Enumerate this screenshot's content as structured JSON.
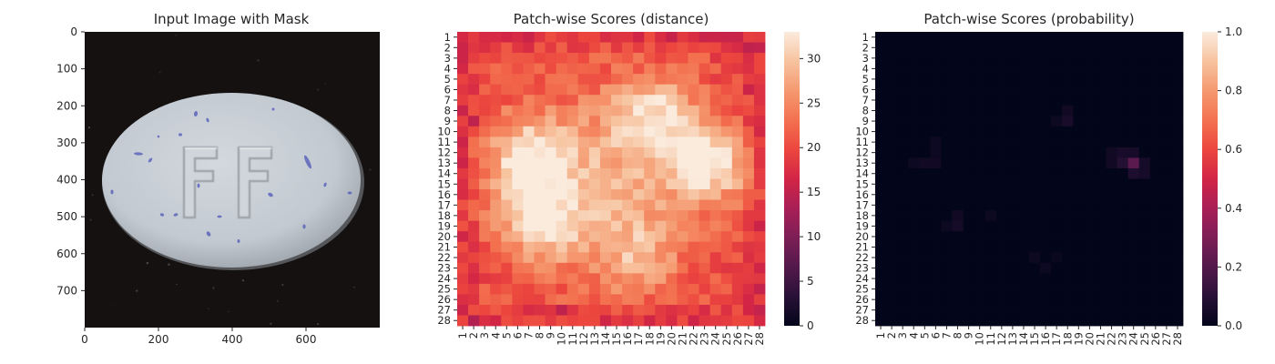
{
  "chart_data": [
    {
      "type": "image",
      "title": "Input Image with Mask",
      "x_ticks": [
        0,
        200,
        400,
        600
      ],
      "y_ticks": [
        0,
        100,
        200,
        300,
        400,
        500,
        600,
        700
      ],
      "xlim": [
        0,
        800
      ],
      "ylim": [
        800,
        0
      ],
      "embossed_text": "FF"
    },
    {
      "type": "heatmap",
      "title": "Patch-wise Scores (distance)",
      "rows": 28,
      "cols": 28,
      "x_tick_labels": [
        "1",
        "2",
        "3",
        "4",
        "5",
        "6",
        "7",
        "8",
        "9",
        "10",
        "11",
        "12",
        "13",
        "14",
        "15",
        "16",
        "17",
        "18",
        "19",
        "20",
        "21",
        "22",
        "23",
        "24",
        "25",
        "26",
        "27",
        "28"
      ],
      "y_tick_labels": [
        "1",
        "2",
        "3",
        "4",
        "5",
        "6",
        "7",
        "8",
        "9",
        "10",
        "11",
        "12",
        "13",
        "14",
        "15",
        "16",
        "17",
        "18",
        "19",
        "20",
        "21",
        "22",
        "23",
        "24",
        "25",
        "26",
        "27",
        "28"
      ],
      "colormap": "rocket",
      "colorbar_range": [
        0,
        33
      ],
      "colorbar_ticks": [
        0,
        5,
        10,
        15,
        20,
        25,
        30
      ],
      "base_level": 20,
      "blobs": [
        {
          "row": 12.5,
          "col": 7,
          "amplitude": 11,
          "radius": 2.6
        },
        {
          "row": 13,
          "col": 23.5,
          "amplitude": 13,
          "radius": 2.4
        },
        {
          "row": 8.5,
          "col": 18.5,
          "amplitude": 10,
          "radius": 2.6
        },
        {
          "row": 18.5,
          "col": 8,
          "amplitude": 10,
          "radius": 2.6
        },
        {
          "row": 15,
          "col": 14,
          "amplitude": 8,
          "radius": 6
        },
        {
          "row": 22,
          "col": 17,
          "amplitude": 6,
          "radius": 2.5
        }
      ],
      "low_cells": [
        {
          "row": 2,
          "col": 1,
          "value": 16
        },
        {
          "row": 2,
          "col": 27,
          "value": 15
        },
        {
          "row": 6,
          "col": 27,
          "value": 16
        },
        {
          "row": 9,
          "col": 2,
          "value": 15
        },
        {
          "row": 11,
          "col": 1,
          "value": 16
        },
        {
          "row": 13,
          "col": 1,
          "value": 16
        },
        {
          "row": 27,
          "col": 1,
          "value": 16
        },
        {
          "row": 27,
          "col": 10,
          "value": 15
        },
        {
          "row": 28,
          "col": 2,
          "value": 14
        }
      ]
    },
    {
      "type": "heatmap",
      "title": "Patch-wise Scores (probability)",
      "rows": 28,
      "cols": 28,
      "x_tick_labels": [
        "1",
        "2",
        "3",
        "4",
        "5",
        "6",
        "7",
        "8",
        "9",
        "10",
        "11",
        "12",
        "13",
        "14",
        "15",
        "16",
        "17",
        "18",
        "19",
        "20",
        "21",
        "22",
        "23",
        "24",
        "25",
        "26",
        "27",
        "28"
      ],
      "y_tick_labels": [
        "1",
        "2",
        "3",
        "4",
        "5",
        "6",
        "7",
        "8",
        "9",
        "10",
        "11",
        "12",
        "13",
        "14",
        "15",
        "16",
        "17",
        "18",
        "19",
        "20",
        "21",
        "22",
        "23",
        "24",
        "25",
        "26",
        "27",
        "28"
      ],
      "colormap": "rocket",
      "colorbar_range": [
        0,
        1.0
      ],
      "colorbar_ticks": [
        "0.0",
        "0.2",
        "0.4",
        "0.6",
        "0.8",
        "1.0"
      ],
      "base_level": 0.0,
      "hot_cells": [
        {
          "row": 13,
          "col": 24,
          "value": 0.22
        },
        {
          "row": 13,
          "col": 23,
          "value": 0.09
        },
        {
          "row": 12,
          "col": 23,
          "value": 0.06
        },
        {
          "row": 12,
          "col": 24,
          "value": 0.05
        },
        {
          "row": 14,
          "col": 24,
          "value": 0.07
        },
        {
          "row": 14,
          "col": 25,
          "value": 0.05
        },
        {
          "row": 13,
          "col": 25,
          "value": 0.05
        },
        {
          "row": 12,
          "col": 22,
          "value": 0.04
        },
        {
          "row": 13,
          "col": 22,
          "value": 0.04
        },
        {
          "row": 9,
          "col": 18,
          "value": 0.06
        },
        {
          "row": 8,
          "col": 18,
          "value": 0.04
        },
        {
          "row": 9,
          "col": 17,
          "value": 0.03
        },
        {
          "row": 13,
          "col": 5,
          "value": 0.04
        },
        {
          "row": 13,
          "col": 6,
          "value": 0.04
        },
        {
          "row": 12,
          "col": 6,
          "value": 0.03
        },
        {
          "row": 11,
          "col": 6,
          "value": 0.03
        },
        {
          "row": 13,
          "col": 4,
          "value": 0.03
        },
        {
          "row": 19,
          "col": 8,
          "value": 0.05
        },
        {
          "row": 18,
          "col": 8,
          "value": 0.04
        },
        {
          "row": 19,
          "col": 7,
          "value": 0.03
        },
        {
          "row": 18,
          "col": 11,
          "value": 0.03
        },
        {
          "row": 22,
          "col": 15,
          "value": 0.03
        },
        {
          "row": 23,
          "col": 16,
          "value": 0.03
        },
        {
          "row": 22,
          "col": 17,
          "value": 0.02
        }
      ]
    }
  ]
}
